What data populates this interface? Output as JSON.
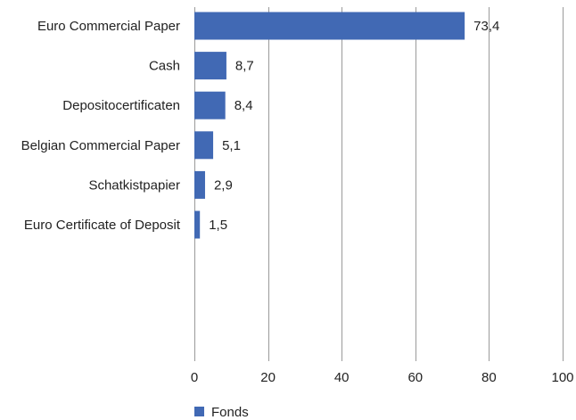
{
  "chart_data": {
    "type": "bar",
    "orientation": "horizontal",
    "categories": [
      "Euro Commercial Paper",
      "Cash",
      "Depositocertificaten",
      "Belgian Commercial Paper",
      "Schatkistpapier",
      "Euro Certificate of Deposit"
    ],
    "series": [
      {
        "name": "Fonds",
        "values": [
          73.4,
          8.7,
          8.4,
          5.1,
          2.9,
          1.5
        ],
        "value_labels": [
          "73,4",
          "8,7",
          "8,4",
          "5,1",
          "2,9",
          "1,5"
        ],
        "color": "#4169b4"
      }
    ],
    "x_ticks": [
      0,
      20,
      40,
      60,
      80,
      100
    ],
    "x_tick_labels": [
      "0",
      "20",
      "40",
      "60",
      "80",
      "100"
    ],
    "xlim": [
      0,
      100
    ],
    "grid": "vertical",
    "legend_position": "bottom-left"
  }
}
